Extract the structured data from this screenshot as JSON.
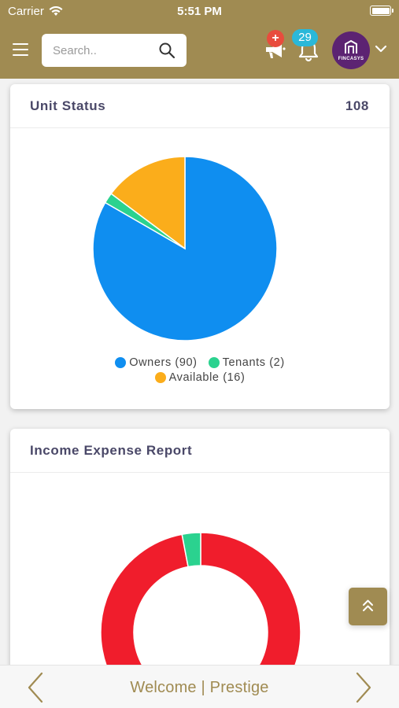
{
  "status_bar": {
    "carrier": "Carrier",
    "time": "5:51 PM"
  },
  "header": {
    "search_placeholder": "Search..",
    "notification_badge": "+",
    "bell_count": "29",
    "avatar_brand": "FINCASYS",
    "colors": {
      "bar": "#a08b52",
      "avatar": "#5c2372",
      "badge_red": "#e84c3d",
      "badge_blue": "#2ab8d9"
    },
    "icons": [
      "menu-icon",
      "search-icon",
      "megaphone-icon",
      "bell-icon",
      "building-logo-icon",
      "chevron-down-icon"
    ]
  },
  "unit_status": {
    "title": "Unit Status",
    "total": "108",
    "legend": {
      "owners": "Owners (90)",
      "tenants": "Tenants (2)",
      "available": "Available (16)"
    }
  },
  "income_expense": {
    "title": "Income Expense Report"
  },
  "chart_data": [
    {
      "type": "pie",
      "categories": [
        "Owners",
        "Tenants",
        "Available"
      ],
      "values": [
        90,
        2,
        16
      ],
      "colors": [
        "#0f8ef0",
        "#2bd28f",
        "#fbad1b"
      ]
    },
    {
      "type": "pie",
      "donut": true,
      "categories": [
        "",
        ""
      ],
      "values": [
        97,
        3
      ],
      "colors": [
        "#f01d2c",
        "#2bd28f"
      ]
    }
  ],
  "bottom_bar": {
    "welcome": "Welcome | Prestige"
  }
}
